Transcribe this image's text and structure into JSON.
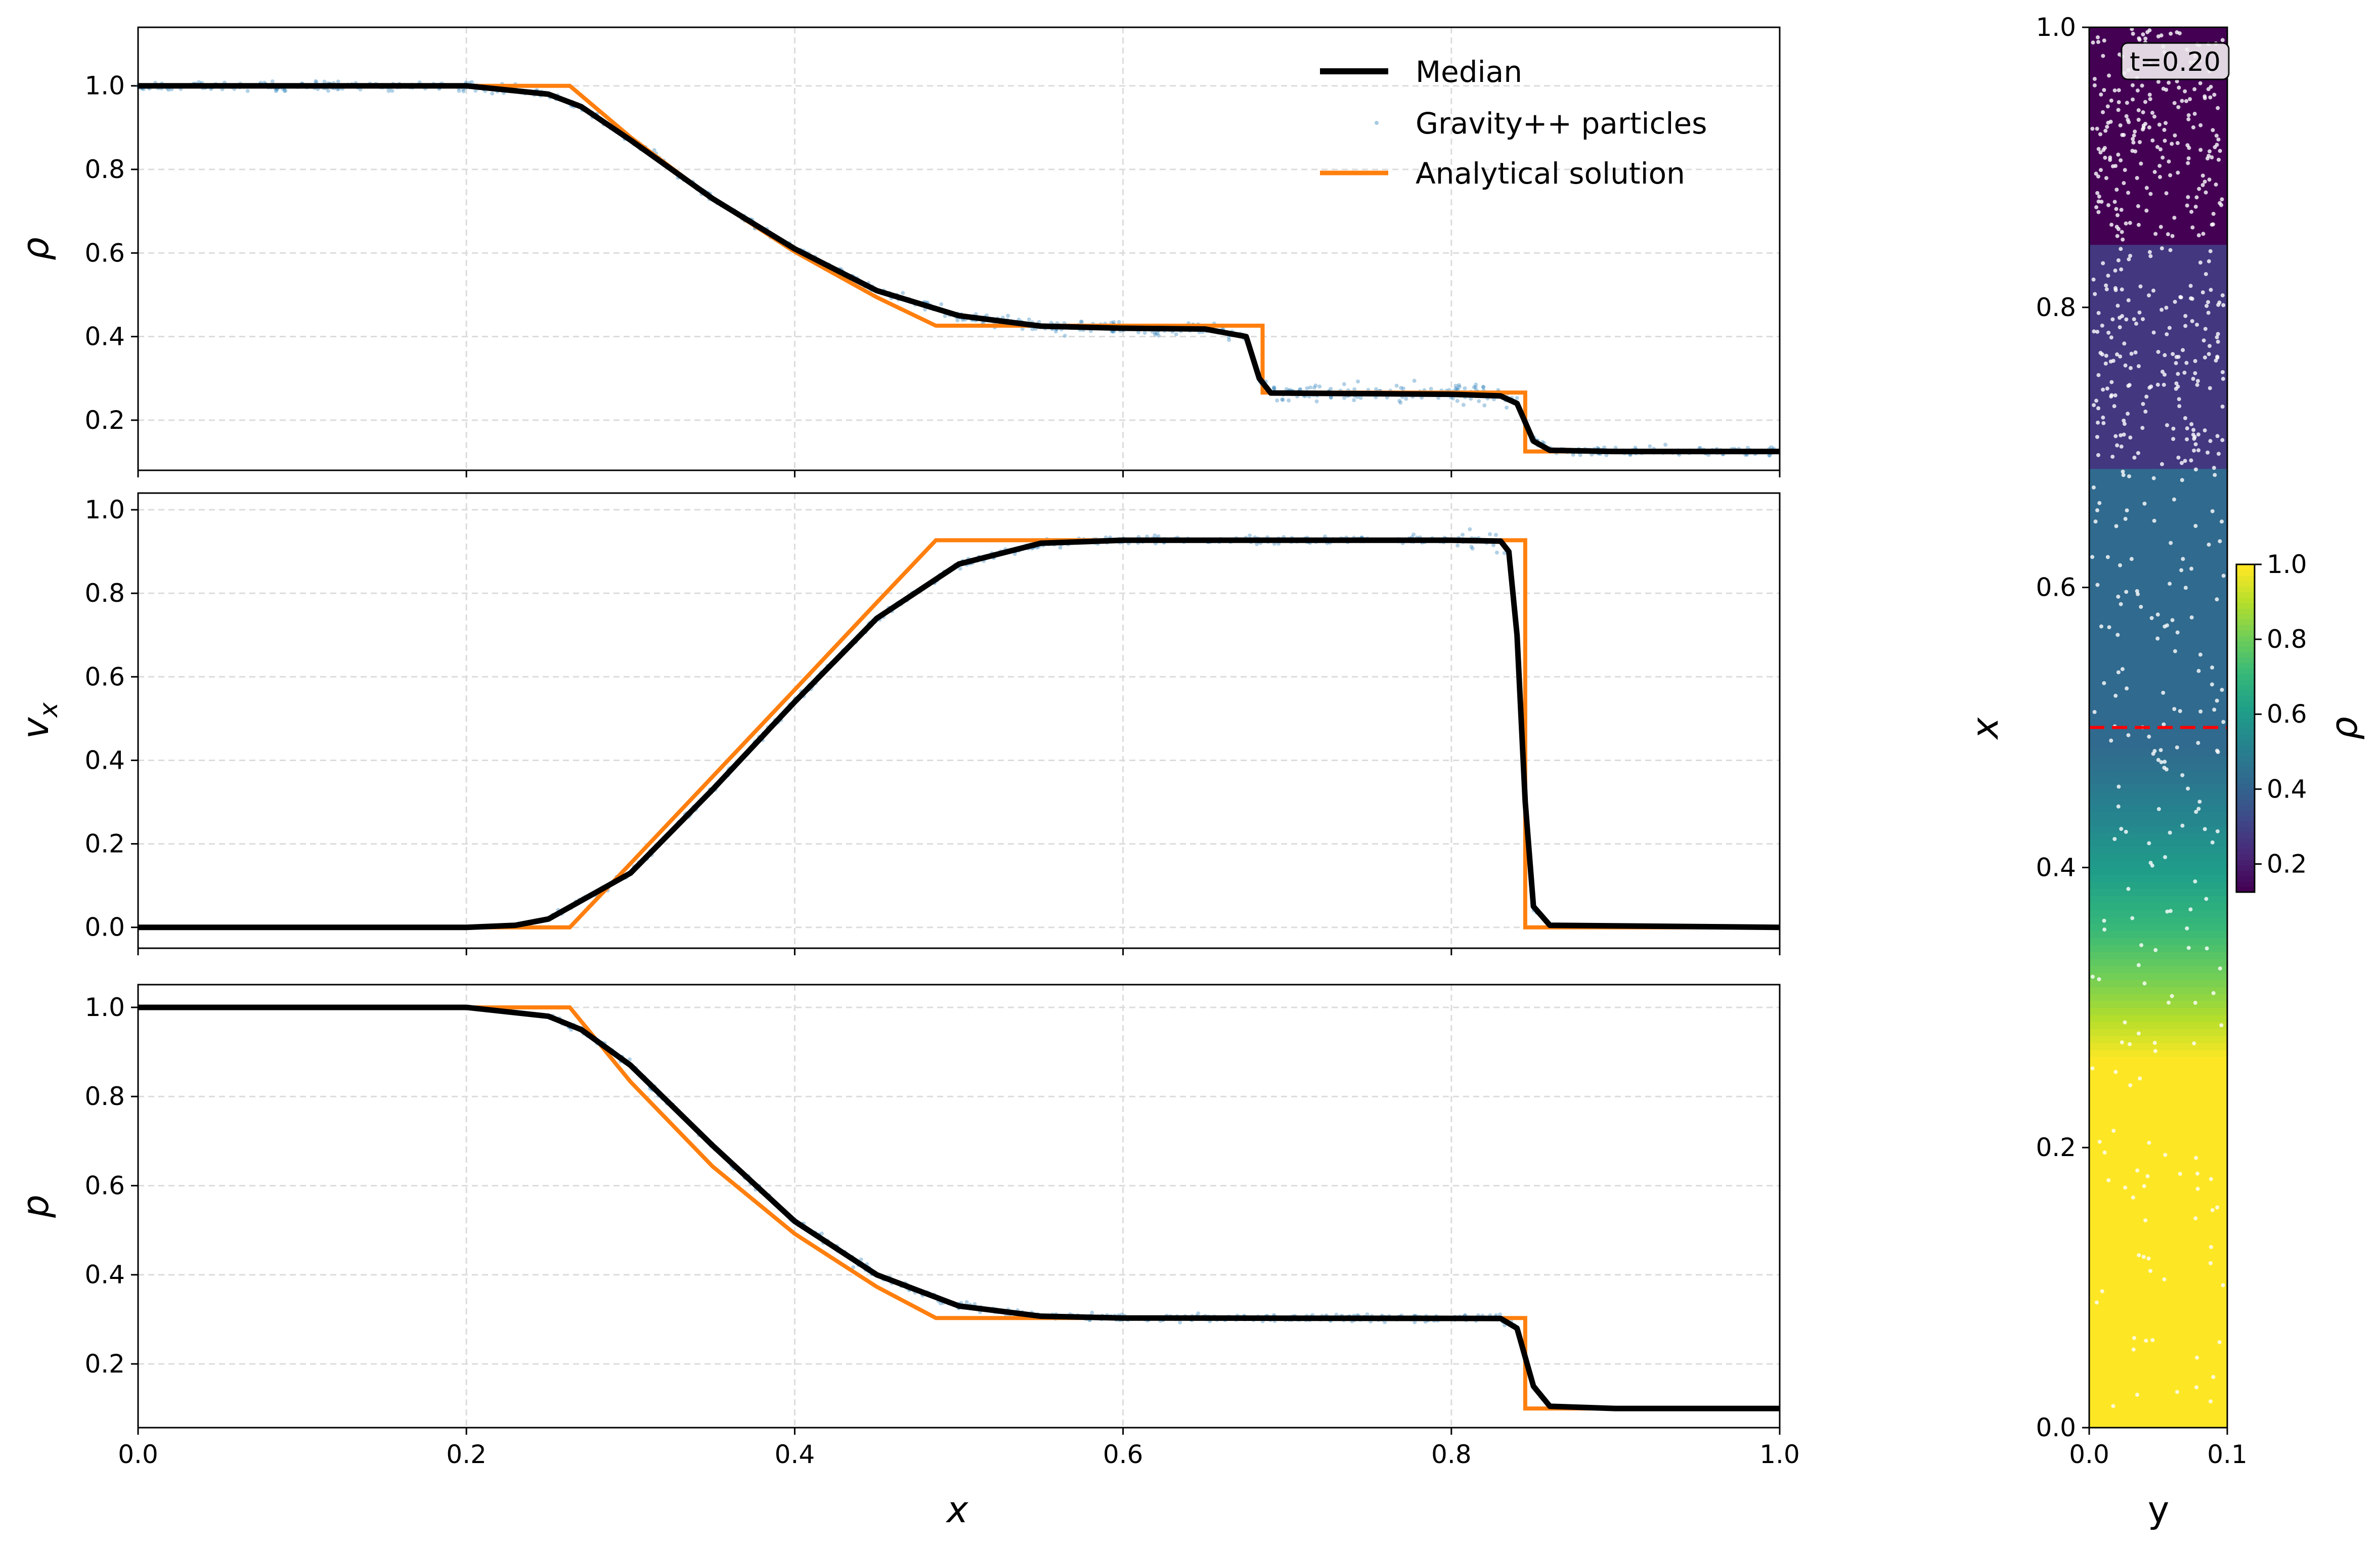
{
  "chart_data": [
    {
      "type": "line",
      "ylabel": "ρ",
      "xlim": [
        0,
        1
      ],
      "ylim": [
        0.08,
        1.14
      ],
      "yticks": [
        "0.2",
        "0.4",
        "0.6",
        "0.8",
        "1.0"
      ],
      "grid": true,
      "legend": {
        "placement": "top-right",
        "entries": [
          "Median",
          "Gravity++ particles",
          "Analytical solution"
        ]
      },
      "series": [
        {
          "name": "Median",
          "color": "#000000",
          "x": [
            0,
            0.2,
            0.25,
            0.27,
            0.3,
            0.35,
            0.4,
            0.45,
            0.5,
            0.55,
            0.6,
            0.65,
            0.675,
            0.683,
            0.69,
            0.8,
            0.83,
            0.84,
            0.85,
            0.86,
            0.9,
            1.0
          ],
          "y": [
            1.0,
            1.0,
            0.98,
            0.95,
            0.87,
            0.73,
            0.61,
            0.51,
            0.45,
            0.425,
            0.42,
            0.418,
            0.4,
            0.3,
            0.265,
            0.262,
            0.258,
            0.24,
            0.15,
            0.128,
            0.125,
            0.125
          ]
        },
        {
          "name": "Analytical solution",
          "color": "#ff7f0e",
          "x": [
            0,
            0.263,
            0.3,
            0.35,
            0.4,
            0.45,
            0.486,
            0.685,
            0.685,
            0.845,
            0.845,
            1.0
          ],
          "y": [
            1.0,
            1.0,
            0.877,
            0.73,
            0.603,
            0.494,
            0.426,
            0.426,
            0.266,
            0.266,
            0.125,
            0.125
          ]
        }
      ]
    },
    {
      "type": "line",
      "ylabel": "v_x",
      "xlim": [
        0,
        1
      ],
      "ylim": [
        -0.05,
        1.04
      ],
      "yticks": [
        "0.0",
        "0.2",
        "0.4",
        "0.6",
        "0.8",
        "1.0"
      ],
      "grid": true,
      "series": [
        {
          "name": "Median",
          "color": "#000000",
          "x": [
            0,
            0.2,
            0.23,
            0.25,
            0.3,
            0.35,
            0.4,
            0.45,
            0.5,
            0.55,
            0.6,
            0.8,
            0.83,
            0.835,
            0.84,
            0.845,
            0.85,
            0.86,
            1.0
          ],
          "y": [
            0,
            0,
            0.005,
            0.02,
            0.13,
            0.33,
            0.54,
            0.74,
            0.87,
            0.92,
            0.927,
            0.927,
            0.925,
            0.9,
            0.7,
            0.3,
            0.05,
            0.005,
            0
          ]
        },
        {
          "name": "Analytical solution",
          "color": "#ff7f0e",
          "x": [
            0,
            0.263,
            0.3,
            0.35,
            0.4,
            0.45,
            0.486,
            0.845,
            0.845,
            1.0
          ],
          "y": [
            0,
            0,
            0.153,
            0.361,
            0.569,
            0.778,
            0.927,
            0.927,
            0,
            0
          ]
        }
      ]
    },
    {
      "type": "line",
      "ylabel": "p",
      "xlabel": "x",
      "xlim": [
        0,
        1
      ],
      "ylim": [
        0.057,
        1.051
      ],
      "xticks": [
        "0.0",
        "0.2",
        "0.4",
        "0.6",
        "0.8",
        "1.0"
      ],
      "yticks": [
        "0.2",
        "0.4",
        "0.6",
        "0.8",
        "1.0"
      ],
      "grid": true,
      "series": [
        {
          "name": "Median",
          "color": "#000000",
          "x": [
            0,
            0.2,
            0.25,
            0.27,
            0.3,
            0.35,
            0.4,
            0.45,
            0.5,
            0.55,
            0.6,
            0.83,
            0.84,
            0.85,
            0.86,
            0.9,
            1.0
          ],
          "y": [
            1,
            1,
            0.98,
            0.95,
            0.87,
            0.69,
            0.52,
            0.4,
            0.33,
            0.307,
            0.303,
            0.302,
            0.28,
            0.15,
            0.105,
            0.1,
            0.1
          ]
        },
        {
          "name": "Analytical solution",
          "color": "#ff7f0e",
          "x": [
            0,
            0.263,
            0.3,
            0.35,
            0.4,
            0.45,
            0.486,
            0.845,
            0.845,
            1.0
          ],
          "y": [
            1,
            1,
            0.833,
            0.643,
            0.492,
            0.373,
            0.303,
            0.303,
            0.1,
            0.1
          ]
        }
      ]
    },
    {
      "type": "heatmap",
      "xlabel": "y",
      "ylabel": "x",
      "xlim": [
        0,
        0.1
      ],
      "ylim": [
        0,
        1
      ],
      "xticks": [
        "0.0",
        "0.1"
      ],
      "yticks": [
        "0.0",
        "0.2",
        "0.4",
        "0.6",
        "0.8",
        "1.0"
      ],
      "annotation": "t=0.20",
      "marker_line": {
        "x": 0.5,
        "color": "#ff0000"
      },
      "colormap": "viridis",
      "colorbar": {
        "label": "ρ",
        "range": [
          0.125,
          1.0
        ],
        "ticks": [
          "0.2",
          "0.4",
          "0.6",
          "0.8",
          "1.0"
        ]
      }
    }
  ]
}
